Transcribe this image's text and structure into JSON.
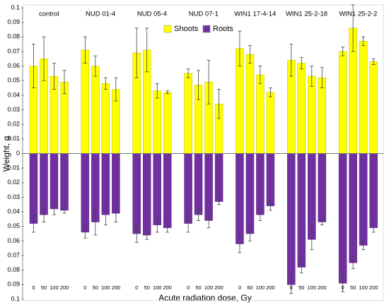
{
  "chart_data": {
    "type": "bar",
    "y_label": "Weight, g",
    "x_label": "Acute radiation dose, Gy",
    "groups": [
      "control",
      "NUD 01-4",
      "NUD 05-4",
      "NUD 07-1",
      "WIN1 17-4-14",
      "WIN1 25-2-18",
      "WIN1 25-2-2"
    ],
    "categories": [
      "0",
      "50",
      "100",
      "200",
      "0",
      "50",
      "100",
      "200",
      "0",
      "50",
      "100",
      "200",
      "0",
      "50",
      "100",
      "200",
      "0",
      "50",
      "100",
      "200",
      "0",
      "50",
      "100",
      "200",
      "0",
      "50",
      "100",
      "200"
    ],
    "series": [
      {
        "name": "Shoots",
        "color": "#ffff00",
        "values": [
          0.06,
          0.065,
          0.053,
          0.049,
          0.071,
          0.06,
          0.048,
          0.044,
          0.069,
          0.071,
          0.043,
          0.042,
          0.055,
          0.047,
          0.049,
          0.034,
          0.072,
          0.068,
          0.054,
          0.042,
          0.064,
          0.062,
          0.053,
          0.052,
          0.07,
          0.086,
          0.077,
          0.063
        ],
        "errors": [
          0.015,
          0.015,
          0.009,
          0.008,
          0.009,
          0.007,
          0.004,
          0.008,
          0.017,
          0.015,
          0.005,
          0.001,
          0.003,
          0.01,
          0.015,
          0.01,
          0.012,
          0.006,
          0.006,
          0.003,
          0.011,
          0.004,
          0.007,
          0.007,
          0.003,
          0.016,
          0.003,
          0.002
        ]
      },
      {
        "name": "Roots",
        "color": "#7030a0",
        "values": [
          -0.048,
          -0.042,
          -0.038,
          -0.039,
          -0.054,
          -0.047,
          -0.042,
          -0.041,
          -0.055,
          -0.056,
          -0.049,
          -0.051,
          -0.048,
          -0.042,
          -0.046,
          -0.033,
          -0.062,
          -0.055,
          -0.042,
          -0.036,
          -0.09,
          -0.078,
          -0.059,
          -0.047,
          -0.089,
          -0.075,
          -0.063,
          -0.051
        ],
        "errors": [
          0.006,
          0.005,
          0.004,
          0.002,
          0.004,
          0.009,
          0.007,
          0.006,
          0.006,
          0.003,
          0.005,
          0.003,
          0.006,
          0.004,
          0.005,
          0.002,
          0.006,
          0.005,
          0.004,
          0.003,
          0.006,
          0.004,
          0.007,
          0.002,
          0.006,
          0.004,
          0.003,
          0.003
        ]
      }
    ],
    "ylim": [
      -0.1,
      0.1
    ],
    "yticks": [
      0.1,
      0.09,
      0.08,
      0.07,
      0.06,
      0.05,
      0.04,
      0.03,
      0.02,
      0.01,
      0,
      {
        "value": -0.01,
        "label": "0.01"
      },
      {
        "value": -0.02,
        "label": "0.02"
      },
      {
        "value": -0.03,
        "label": "0.03"
      },
      {
        "value": -0.04,
        "label": "0.04"
      },
      {
        "value": -0.05,
        "label": "0.05"
      },
      {
        "value": -0.06,
        "label": "0.06"
      },
      {
        "value": -0.07,
        "label": "0.07"
      },
      {
        "value": -0.08,
        "label": "0.08"
      },
      {
        "value": -0.09,
        "label": "0.09"
      },
      {
        "value": -0.1,
        "label": "0.1"
      }
    ]
  }
}
